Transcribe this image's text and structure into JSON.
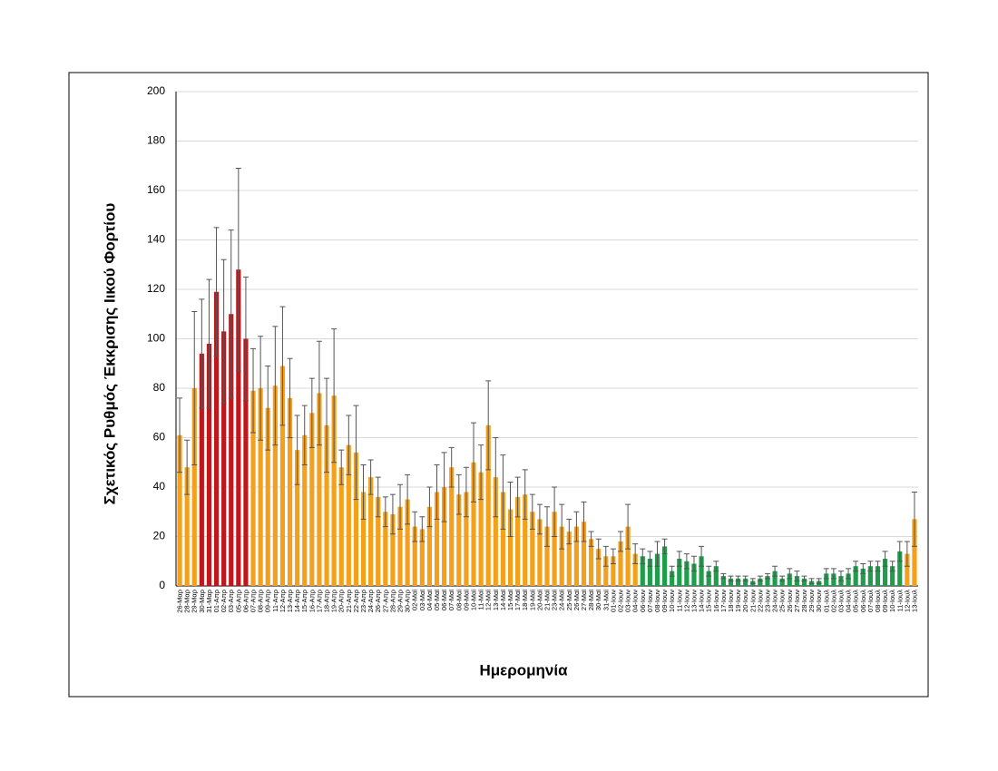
{
  "chart_data": {
    "type": "bar",
    "y_label": "Σχετικός Ρυθμός Έκκρισης Ιικού Φορτίου",
    "x_label": "Ημερομηνία",
    "categories": [
      "26-Μαρ",
      "28-Μαρ",
      "29-Μαρ",
      "30-Μαρ",
      "31-Μαρ",
      "01-Απρ",
      "02-Απρ",
      "03-Απρ",
      "05-Απρ",
      "06-Απρ",
      "07-Απρ",
      "08-Απρ",
      "09-Απρ",
      "11-Απρ",
      "12-Απρ",
      "13-Απρ",
      "14-Απρ",
      "15-Απρ",
      "16-Απρ",
      "17-Απρ",
      "18-Απρ",
      "19-Απρ",
      "20-Απρ",
      "21-Απρ",
      "22-Απρ",
      "23-Απρ",
      "24-Απρ",
      "26-Απρ",
      "27-Απρ",
      "28-Απρ",
      "29-Απρ",
      "30-Απρ",
      "02-Μαϊ",
      "03-Μαϊ",
      "04-Μαϊ",
      "05-Μαϊ",
      "06-Μαϊ",
      "07-Μαϊ",
      "08-Μαϊ",
      "09-Μαϊ",
      "10-Μαϊ",
      "11-Μαϊ",
      "12-Μαϊ",
      "13-Μαϊ",
      "14-Μαϊ",
      "15-Μαϊ",
      "17-Μαϊ",
      "18-Μαϊ",
      "19-Μαϊ",
      "20-Μαϊ",
      "21-Μαϊ",
      "23-Μαϊ",
      "24-Μαϊ",
      "25-Μαϊ",
      "26-Μαϊ",
      "27-Μαϊ",
      "28-Μαϊ",
      "30-Μαϊ",
      "31-Μαϊ",
      "01-Ιουν",
      "02-Ιουν",
      "03-Ιουν",
      "04-Ιουν",
      "06-Ιουν",
      "07-Ιουν",
      "08-Ιουν",
      "09-Ιουν",
      "10-Ιουν",
      "11-Ιουν",
      "12-Ιουν",
      "13-Ιουν",
      "14-Ιουν",
      "15-Ιουν",
      "16-Ιουν",
      "17-Ιουν",
      "18-Ιουν",
      "19-Ιουν",
      "20-Ιουν",
      "21-Ιουν",
      "22-Ιουν",
      "23-Ιουν",
      "24-Ιουν",
      "25-Ιουν",
      "26-Ιουν",
      "27-Ιουν",
      "28-Ιουν",
      "29-Ιουν",
      "30-Ιουν",
      "01-Ιουλ",
      "02-Ιουλ",
      "03-Ιουλ",
      "04-Ιουλ",
      "05-Ιουλ",
      "06-Ιουλ",
      "07-Ιουλ",
      "08-Ιουλ",
      "09-Ιουλ",
      "10-Ιουλ",
      "11-Ιουλ",
      "12-Ιουλ",
      "13-Ιουλ"
    ],
    "values": [
      61,
      48,
      80,
      94,
      98,
      119,
      103,
      110,
      128,
      100,
      79,
      80,
      72,
      81,
      89,
      76,
      55,
      61,
      70,
      78,
      65,
      77,
      48,
      57,
      54,
      38,
      44,
      36,
      30,
      29,
      32,
      35,
      24,
      23,
      32,
      38,
      40,
      48,
      37,
      38,
      50,
      46,
      65,
      44,
      38,
      31,
      36,
      37,
      30,
      27,
      24,
      30,
      24,
      22,
      24,
      26,
      19,
      15,
      12,
      12,
      18,
      24,
      13,
      12,
      11,
      13,
      16,
      6,
      11,
      10,
      9,
      12,
      6,
      8,
      4,
      3,
      3,
      3,
      2,
      3,
      4,
      6,
      3,
      5,
      4,
      3,
      2,
      2,
      5,
      5,
      4,
      5,
      8,
      7,
      8,
      8,
      11,
      8,
      14,
      13,
      27
    ],
    "errors": [
      15,
      11,
      31,
      22,
      26,
      26,
      29,
      34,
      41,
      25,
      17,
      21,
      17,
      24,
      24,
      16,
      14,
      12,
      14,
      21,
      19,
      27,
      7,
      12,
      19,
      11,
      7,
      8,
      6,
      8,
      9,
      10,
      6,
      5,
      8,
      11,
      14,
      8,
      8,
      10,
      16,
      11,
      18,
      16,
      15,
      11,
      8,
      10,
      7,
      6,
      8,
      10,
      9,
      5,
      6,
      8,
      3,
      4,
      4,
      3,
      4,
      9,
      4,
      3,
      3,
      5,
      3,
      2,
      3,
      3,
      3,
      4,
      2,
      2,
      1,
      1,
      1,
      1,
      1,
      1,
      1,
      2,
      1,
      2,
      2,
      1,
      1,
      1,
      2,
      2,
      2,
      2,
      2,
      2,
      2,
      2,
      3,
      2,
      4,
      5,
      11
    ],
    "colors": [
      "#f5a01a",
      "#f5a01a",
      "#f5a01a",
      "#c0171d",
      "#c0171d",
      "#c0171d",
      "#c0171d",
      "#c0171d",
      "#c0171d",
      "#c0171d",
      "#f5a01a",
      "#f5a01a",
      "#f5a01a",
      "#f5a01a",
      "#f5a01a",
      "#f5a01a",
      "#f5a01a",
      "#f5a01a",
      "#f5a01a",
      "#f5a01a",
      "#f5a01a",
      "#f5a01a",
      "#f5a01a",
      "#f5a01a",
      "#f5a01a",
      "#f5a01a",
      "#f5a01a",
      "#f5a01a",
      "#f5a01a",
      "#f5a01a",
      "#f5a01a",
      "#f5a01a",
      "#f5a01a",
      "#f5a01a",
      "#f5a01a",
      "#f5a01a",
      "#f5a01a",
      "#f5a01a",
      "#f5a01a",
      "#f5a01a",
      "#f5a01a",
      "#f5a01a",
      "#f5a01a",
      "#f5a01a",
      "#f5a01a",
      "#f5a01a",
      "#f5a01a",
      "#f5a01a",
      "#f5a01a",
      "#f5a01a",
      "#f5a01a",
      "#f5a01a",
      "#f5a01a",
      "#f5a01a",
      "#f5a01a",
      "#f5a01a",
      "#f5a01a",
      "#f5a01a",
      "#f5a01a",
      "#f5a01a",
      "#f5a01a",
      "#f5a01a",
      "#f5a01a",
      "#1e9e4b",
      "#1e9e4b",
      "#1e9e4b",
      "#1e9e4b",
      "#1e9e4b",
      "#1e9e4b",
      "#1e9e4b",
      "#1e9e4b",
      "#1e9e4b",
      "#1e9e4b",
      "#1e9e4b",
      "#1e9e4b",
      "#1e9e4b",
      "#1e9e4b",
      "#1e9e4b",
      "#1e9e4b",
      "#1e9e4b",
      "#1e9e4b",
      "#1e9e4b",
      "#1e9e4b",
      "#1e9e4b",
      "#1e9e4b",
      "#1e9e4b",
      "#1e9e4b",
      "#1e9e4b",
      "#1e9e4b",
      "#1e9e4b",
      "#1e9e4b",
      "#1e9e4b",
      "#1e9e4b",
      "#1e9e4b",
      "#1e9e4b",
      "#1e9e4b",
      "#1e9e4b",
      "#1e9e4b",
      "#1e9e4b",
      "#f5a01a",
      "#f5a01a"
    ],
    "ylim": [
      0,
      200
    ],
    "yticks": [
      0,
      20,
      40,
      60,
      80,
      100,
      120,
      140,
      160,
      180,
      200
    ],
    "grid": true
  }
}
